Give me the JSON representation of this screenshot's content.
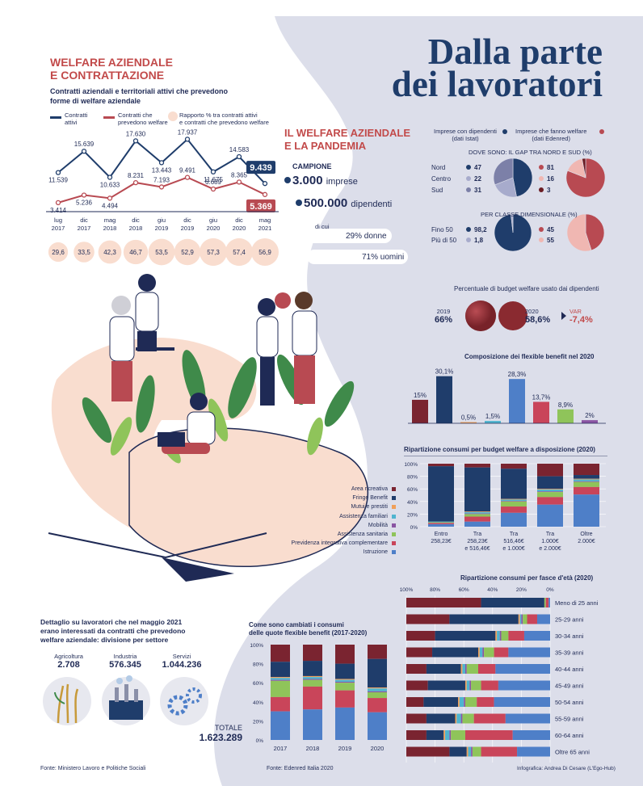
{
  "page": {
    "title_line1": "Dalla parte",
    "title_line2": "dei lavoratori",
    "credit": "Infografica: Andrea Di Cesare (L'Ego-Hub)",
    "source_left": "Fonte: Ministero Lavoro e Politiche Sociali",
    "source_mid": "Fonte: Edenred Italia 2020",
    "colors": {
      "navy": "#1f3d6b",
      "red": "#b84a52",
      "lavender": "#dcdeea",
      "peach": "#f9ddcf"
    }
  },
  "left_section": {
    "title_line1": "WELFARE AZIENDALE",
    "title_line2": "E CONTRATTAZIONE",
    "subtitle_line1": "Contratti aziendali e territoriali attivi che prevedono",
    "subtitle_line2": "forme di welfare aziendale",
    "legend": {
      "attivi_l1": "Contratti",
      "attivi_l2": "attivi",
      "welfare_l1": "Contratti che",
      "welfare_l2": "prevedono welfare",
      "ratio_l1": "Rapporto % tra contratti attivi",
      "ratio_l2": "e contratti che prevedono welfare"
    },
    "divisione": {
      "title_l1": "Dettaglio su lavoratori che nel maggio 2021",
      "title_l2": "erano interessati da contratti che prevedono",
      "title_l3": "welfare aziendale: divisione per settore",
      "sectors": [
        {
          "name": "Agricoltura",
          "value": "2.708"
        },
        {
          "name": "Industria",
          "value": "576.345"
        },
        {
          "name": "Servizi",
          "value": "1.044.236"
        }
      ],
      "totale_label": "TOTALE",
      "totale_value": "1.623.289"
    }
  },
  "pandemia": {
    "title_l1": "IL WELFARE AZIENDALE",
    "title_l2": "E LA PANDEMIA",
    "campione_label": "CAMPIONE",
    "imprese": "3.000",
    "imprese_label": "imprese",
    "dipendenti": "500.000",
    "dipendenti_label": "dipendenti",
    "di_cui": "di cui",
    "donne": "29% donne",
    "uomini": "71% uomini"
  },
  "gap": {
    "legend_istat_l1": "Imprese con dipendenti",
    "legend_istat_l2": "(dati Istat)",
    "legend_edenred_l1": "Imprese che fanno welfare",
    "legend_edenred_l2": "(dati Edenred)",
    "title_area": "DOVE SONO: IL GAP TRA NORD E SUD (%)",
    "areas": [
      "Nord",
      "Centro",
      "Sud"
    ],
    "area_istat": [
      "47",
      "22",
      "31"
    ],
    "area_edenred": [
      "81",
      "16",
      "3"
    ],
    "title_size": "PER CLASSE DIMENSIONALE (%)",
    "sizes": [
      "Fino 50",
      "Più di 50"
    ],
    "size_istat": [
      "98,2",
      "1,8"
    ],
    "size_edenred": [
      "45",
      "55"
    ]
  },
  "budget": {
    "title": "Percentuale di budget welfare usato dai dipendenti",
    "y2019": "2019",
    "v2019": "66%",
    "y2020": "2020",
    "v2020": "58,6%",
    "var_label": "VAR",
    "var_value": "-7,4%"
  },
  "chart_data": [
    {
      "type": "line",
      "categories_l1": [
        "lug",
        "dic",
        "mag",
        "dic",
        "giu",
        "dic",
        "giu",
        "dic",
        "mag"
      ],
      "categories_l2": [
        "2017",
        "2017",
        "2018",
        "2018",
        "2019",
        "2019",
        "2020",
        "2020",
        "2021"
      ],
      "series": [
        {
          "name": "Contratti attivi",
          "values": [
            11539,
            15639,
            10633,
            17630,
            13443,
            17937,
            11675,
            14583,
            9439
          ],
          "labels": [
            "11.539",
            "15.639",
            "10.633",
            "17.630",
            "13.443",
            "17.937",
            "11.675",
            "14.583",
            "9.439"
          ]
        },
        {
          "name": "Contratti che prevedono welfare",
          "values": [
            3414,
            5236,
            4494,
            8231,
            7193,
            9491,
            6689,
            8365,
            5369
          ],
          "labels": [
            "3.414",
            "5.236",
            "4.494",
            "8.231",
            "7.193",
            "9.491",
            "6.689",
            "8.365",
            "5.369"
          ]
        }
      ],
      "ratio_labels": [
        "29,6",
        "33,5",
        "42,3",
        "46,7",
        "53,5",
        "52,9",
        "57,3",
        "57,4",
        "56,9"
      ],
      "ratio_values": [
        29.6,
        33.5,
        42.3,
        46.7,
        53.5,
        52.9,
        57.3,
        57.4,
        56.9
      ]
    },
    {
      "type": "bar",
      "title": "Composizione dei flexible benefit nel 2020",
      "values": [
        15,
        30.1,
        0.5,
        1.5,
        28.3,
        13.7,
        8.9,
        2
      ],
      "labels": [
        "15%",
        "30,1%",
        "0,5%",
        "1,5%",
        "28,3%",
        "13,7%",
        "8,9%",
        "2%"
      ],
      "colors": [
        "#7a2430",
        "#1f3d6b",
        "#f0a05a",
        "#4fb4cf",
        "#4e7fc8",
        "#c9455a",
        "#8fc45a",
        "#8a55a3"
      ]
    },
    {
      "type": "bar",
      "stacked": true,
      "title": "Ripartizione consumi per budget welfare a disposizione (2020)",
      "y_ticks": [
        "100%",
        "80%",
        "60%",
        "40%",
        "20%",
        "0%"
      ],
      "categories_l1": [
        "Entro",
        "Tra",
        "Tra",
        "Tra",
        "Oltre"
      ],
      "categories_l2": [
        "258,23€",
        "258,23€",
        "516,46€",
        "1.000€",
        "2.000€"
      ],
      "categories_l3": [
        "",
        "e 516,46€",
        "e 1.000€",
        "e 2.000€",
        ""
      ],
      "series_names": [
        "Area ricreativa",
        "Fringe Benefit",
        "Mutui e prestiti",
        "Assistenza familiari",
        "Mobilità",
        "Assistenza sanitaria",
        "Previdenza integrativa complementare",
        "Istruzione"
      ],
      "colors": [
        "#7a2430",
        "#1f3d6b",
        "#f0a05a",
        "#4fb4cf",
        "#8a55a3",
        "#8fc45a",
        "#c9455a",
        "#4e7fc8"
      ],
      "values": [
        [
          4,
          88,
          0,
          1,
          0,
          1,
          2,
          4
        ],
        [
          6,
          70,
          1,
          2,
          1,
          4,
          8,
          8
        ],
        [
          8,
          48,
          1,
          2,
          1,
          8,
          10,
          22
        ],
        [
          20,
          20,
          1,
          3,
          1,
          8,
          12,
          35
        ],
        [
          18,
          6,
          1,
          3,
          1,
          8,
          12,
          51
        ]
      ]
    },
    {
      "type": "bar",
      "stacked": true,
      "title": "Ripartizione consumi per fasce d'età (2020)",
      "x_ticks": [
        "100%",
        "80%",
        "60%",
        "40%",
        "20%",
        "0%"
      ],
      "categories": [
        "Meno di 25 anni",
        "25-29 anni",
        "30-34 anni",
        "35-39 anni",
        "40-44 anni",
        "45-49 anni",
        "50-54 anni",
        "55-59 anni",
        "60-64 anni",
        "Oltre 65 anni"
      ],
      "colors": [
        "#7a2430",
        "#1f3d6b",
        "#f0a05a",
        "#4fb4cf",
        "#8a55a3",
        "#8fc45a",
        "#c9455a",
        "#4e7fc8"
      ],
      "values": [
        [
          52,
          44,
          0,
          0,
          0,
          1,
          2,
          1
        ],
        [
          30,
          48,
          1,
          1,
          1,
          3,
          7,
          9
        ],
        [
          20,
          42,
          1,
          2,
          1,
          5,
          11,
          18
        ],
        [
          18,
          32,
          1,
          2,
          1,
          7,
          10,
          29
        ],
        [
          14,
          24,
          1,
          2,
          1,
          8,
          12,
          38
        ],
        [
          15,
          26,
          1,
          2,
          1,
          7,
          12,
          36
        ],
        [
          12,
          24,
          1,
          3,
          1,
          8,
          12,
          39
        ],
        [
          14,
          20,
          1,
          3,
          1,
          8,
          22,
          31
        ],
        [
          14,
          12,
          1,
          3,
          1,
          10,
          33,
          26
        ],
        [
          30,
          12,
          1,
          2,
          1,
          6,
          25,
          23
        ]
      ]
    },
    {
      "type": "bar",
      "stacked": true,
      "title_l1": "Come sono cambiati i consumi",
      "title_l2": "delle quote flexible benefit (2017-2020)",
      "y_ticks": [
        "100%",
        "80%",
        "60%",
        "40%",
        "20%",
        "0%"
      ],
      "categories": [
        "2017",
        "2018",
        "2019",
        "2020"
      ],
      "colors": [
        "#7a2430",
        "#1f3d6b",
        "#f0a05a",
        "#4fb4cf",
        "#8a55a3",
        "#8fc45a",
        "#c9455a",
        "#4e7fc8"
      ],
      "values": [
        [
          18,
          16,
          1,
          2,
          1,
          17,
          15,
          30
        ],
        [
          17,
          16,
          1,
          2,
          1,
          7,
          24,
          32
        ],
        [
          20,
          16,
          1,
          2,
          1,
          8,
          18,
          34
        ],
        [
          15,
          30,
          1,
          3,
          1,
          6,
          15,
          29
        ]
      ]
    }
  ]
}
